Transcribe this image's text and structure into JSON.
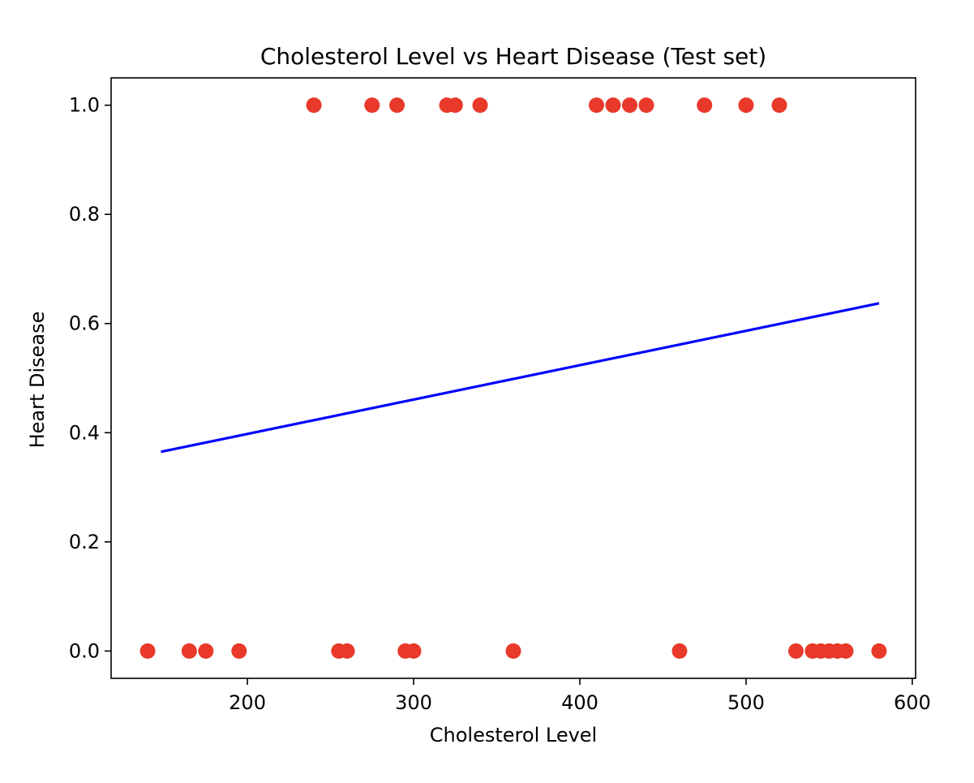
{
  "chart_data": {
    "type": "scatter",
    "title": "Cholesterol Level vs Heart Disease (Test set)",
    "xlabel": "Cholesterol Level",
    "ylabel": "Heart Disease",
    "xlim": [
      118,
      602
    ],
    "ylim": [
      -0.05,
      1.05
    ],
    "xticks": [
      200,
      300,
      400,
      500,
      600
    ],
    "xtick_labels": [
      "200",
      "300",
      "400",
      "500",
      "600"
    ],
    "yticks": [
      0.0,
      0.2,
      0.4,
      0.6,
      0.8,
      1.0
    ],
    "ytick_labels": [
      "0.0",
      "0.2",
      "0.4",
      "0.6",
      "0.8",
      "1.0"
    ],
    "grid": false,
    "scatter_color": "#e8392a",
    "line_color": "#0000ff",
    "series": [
      {
        "kind": "scatter",
        "points": [
          {
            "x": 140,
            "y": 0
          },
          {
            "x": 165,
            "y": 0
          },
          {
            "x": 175,
            "y": 0
          },
          {
            "x": 195,
            "y": 0
          },
          {
            "x": 255,
            "y": 0
          },
          {
            "x": 260,
            "y": 0
          },
          {
            "x": 295,
            "y": 0
          },
          {
            "x": 300,
            "y": 0
          },
          {
            "x": 360,
            "y": 0
          },
          {
            "x": 460,
            "y": 0
          },
          {
            "x": 530,
            "y": 0
          },
          {
            "x": 540,
            "y": 0
          },
          {
            "x": 545,
            "y": 0
          },
          {
            "x": 550,
            "y": 0
          },
          {
            "x": 555,
            "y": 0
          },
          {
            "x": 560,
            "y": 0
          },
          {
            "x": 580,
            "y": 0
          },
          {
            "x": 240,
            "y": 1
          },
          {
            "x": 275,
            "y": 1
          },
          {
            "x": 290,
            "y": 1
          },
          {
            "x": 320,
            "y": 1
          },
          {
            "x": 325,
            "y": 1
          },
          {
            "x": 340,
            "y": 1
          },
          {
            "x": 410,
            "y": 1
          },
          {
            "x": 420,
            "y": 1
          },
          {
            "x": 430,
            "y": 1
          },
          {
            "x": 440,
            "y": 1
          },
          {
            "x": 475,
            "y": 1
          },
          {
            "x": 500,
            "y": 1
          },
          {
            "x": 520,
            "y": 1
          }
        ]
      },
      {
        "kind": "line",
        "points": [
          {
            "x": 148,
            "y": 0.365
          },
          {
            "x": 580,
            "y": 0.637
          }
        ]
      }
    ]
  }
}
